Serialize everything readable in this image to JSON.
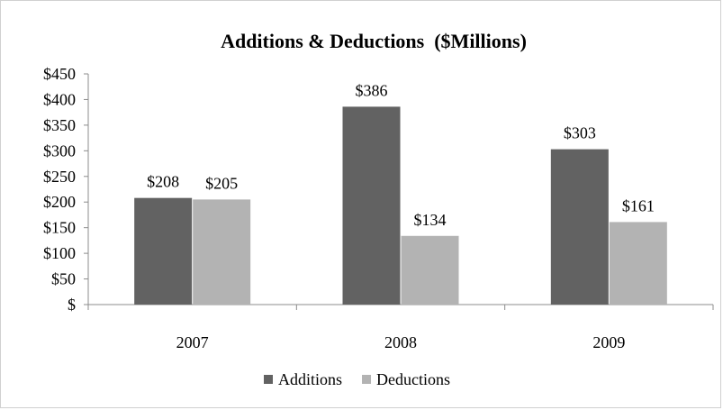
{
  "chart_data": {
    "type": "bar",
    "title": "Additions & Deductions  ($Millions)",
    "categories": [
      "2007",
      "2008",
      "2009"
    ],
    "series": [
      {
        "name": "Additions",
        "values": [
          208,
          386,
          303
        ],
        "labels": [
          "$208",
          "$386",
          "$303"
        ],
        "color": "#626262"
      },
      {
        "name": "Deductions",
        "values": [
          205,
          134,
          161
        ],
        "labels": [
          "$205",
          "$134",
          "$161"
        ],
        "color": "#b3b3b3"
      }
    ],
    "ylim": [
      0,
      450
    ],
    "yticks": [
      0,
      50,
      100,
      150,
      200,
      250,
      300,
      350,
      400,
      450
    ],
    "ytick_labels": [
      "$",
      "$50",
      "$100",
      "$150",
      "$200",
      "$250",
      "$300",
      "$350",
      "$400",
      "$450"
    ],
    "grid": false,
    "legend": "bottom",
    "xlabel": "",
    "ylabel": ""
  }
}
